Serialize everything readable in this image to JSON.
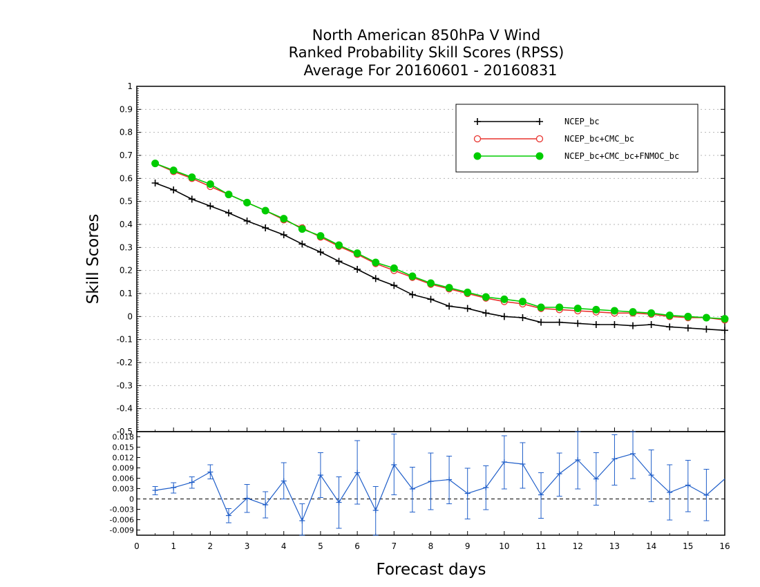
{
  "chart_data": [
    {
      "type": "line",
      "title": [
        "North American 850hPa V Wind",
        "Ranked Probability Skill Scores (RPSS)",
        "Average For 20160601 - 20160831"
      ],
      "ylabel": "Skill Scores",
      "xlabel": "Forecast days",
      "xlim": [
        0,
        16
      ],
      "ylim": [
        -0.5,
        1
      ],
      "xticks": [
        "0",
        "1",
        "2",
        "3",
        "4",
        "5",
        "6",
        "7",
        "8",
        "9",
        "10",
        "11",
        "12",
        "13",
        "14",
        "15",
        "16"
      ],
      "yticks": [
        "-0.5",
        "-0.4",
        "-0.3",
        "-0.2",
        "-0.1",
        "0",
        "0.1",
        "0.2",
        "0.3",
        "0.4",
        "0.5",
        "0.6",
        "0.7",
        "0.8",
        "0.9",
        "1"
      ],
      "grid": true,
      "legend_position": "top-right",
      "x": [
        0.5,
        1,
        1.5,
        2,
        2.5,
        3,
        3.5,
        4,
        4.5,
        5,
        5.5,
        6,
        6.5,
        7,
        7.5,
        8,
        8.5,
        9,
        9.5,
        10,
        10.5,
        11,
        11.5,
        12,
        12.5,
        13,
        13.5,
        14,
        14.5,
        15,
        15.5,
        16
      ],
      "series": [
        {
          "name": "NCEP_bc",
          "color": "#000000",
          "marker": "plus",
          "values": [
            0.58,
            0.55,
            0.51,
            0.48,
            0.45,
            0.415,
            0.385,
            0.355,
            0.315,
            0.28,
            0.24,
            0.205,
            0.165,
            0.135,
            0.095,
            0.075,
            0.045,
            0.035,
            0.015,
            0.0,
            -0.005,
            -0.025,
            -0.025,
            -0.03,
            -0.035,
            -0.035,
            -0.04,
            -0.035,
            -0.045,
            -0.05,
            -0.055,
            -0.06
          ]
        },
        {
          "name": "NCEP_bc+CMC_bc",
          "color": "#e8312c",
          "marker": "open-circle",
          "values": [
            0.665,
            0.63,
            0.6,
            0.565,
            0.53,
            0.495,
            0.46,
            0.42,
            0.385,
            0.345,
            0.305,
            0.27,
            0.23,
            0.2,
            0.17,
            0.14,
            0.12,
            0.1,
            0.08,
            0.065,
            0.055,
            0.035,
            0.03,
            0.025,
            0.02,
            0.015,
            0.015,
            0.01,
            0.0,
            -0.005,
            -0.005,
            -0.015
          ]
        },
        {
          "name": "NCEP_bc+CMC_bc+FNMOC_bc",
          "color": "#00cc00",
          "marker": "filled-circle",
          "values": [
            0.665,
            0.635,
            0.605,
            0.575,
            0.53,
            0.495,
            0.46,
            0.425,
            0.38,
            0.35,
            0.31,
            0.275,
            0.235,
            0.21,
            0.175,
            0.145,
            0.125,
            0.105,
            0.085,
            0.075,
            0.065,
            0.04,
            0.04,
            0.035,
            0.03,
            0.025,
            0.02,
            0.015,
            0.005,
            0.0,
            -0.005,
            -0.01
          ]
        }
      ]
    },
    {
      "type": "line",
      "xlim": [
        0,
        16
      ],
      "ylim": [
        -0.0105,
        0.0195
      ],
      "yticks": [
        "-0.009",
        "-0.006",
        "-0.003",
        "0",
        "0.003",
        "0.006",
        "0.009",
        "0.012",
        "0.015",
        "0.018"
      ],
      "color": "#1f5ec9",
      "x": [
        0.5,
        1,
        1.5,
        2,
        2.5,
        3,
        3.5,
        4,
        4.5,
        5,
        5.5,
        6,
        6.5,
        7,
        7.5,
        8,
        8.5,
        9,
        9.5,
        10,
        10.5,
        11,
        11.5,
        12,
        12.5,
        13,
        13.5,
        14,
        14.5,
        15,
        15.5,
        16
      ],
      "values": [
        0.0025,
        0.0033,
        0.0048,
        0.0078,
        -0.0048,
        0.0002,
        -0.0017,
        0.0052,
        -0.0063,
        0.0069,
        -0.001,
        0.0076,
        -0.0033,
        0.0099,
        0.0029,
        0.0051,
        0.0056,
        0.0016,
        0.0033,
        0.0107,
        0.0101,
        0.0012,
        0.0073,
        0.0113,
        0.0058,
        0.0116,
        0.0131,
        0.0069,
        0.0019,
        0.004,
        0.0011,
        0.0058
      ],
      "err_low": [
        0.0012,
        0.0017,
        0.0031,
        0.0058,
        -0.0069,
        -0.0039,
        -0.0055,
        0.0,
        -0.0112,
        0.0004,
        -0.0085,
        -0.0015,
        -0.0112,
        0.0012,
        -0.0038,
        -0.0031,
        -0.0014,
        -0.0058,
        -0.0031,
        0.0029,
        0.0031,
        -0.0056,
        0.0008,
        0.0029,
        -0.0018,
        0.004,
        0.0059,
        -0.0008,
        -0.0061,
        -0.0037,
        -0.0063,
        -0.0023
      ],
      "err_high": [
        0.0036,
        0.0047,
        0.0064,
        0.0099,
        -0.0028,
        0.0042,
        0.0021,
        0.0105,
        -0.0014,
        0.0134,
        0.0064,
        0.0169,
        0.0036,
        0.0188,
        0.0092,
        0.0133,
        0.0124,
        0.0089,
        0.0096,
        0.0183,
        0.0163,
        0.0076,
        0.0133,
        0.0199,
        0.0134,
        0.0186,
        0.0211,
        0.0142,
        0.0099,
        0.0112,
        0.0086,
        0.0128
      ]
    }
  ]
}
